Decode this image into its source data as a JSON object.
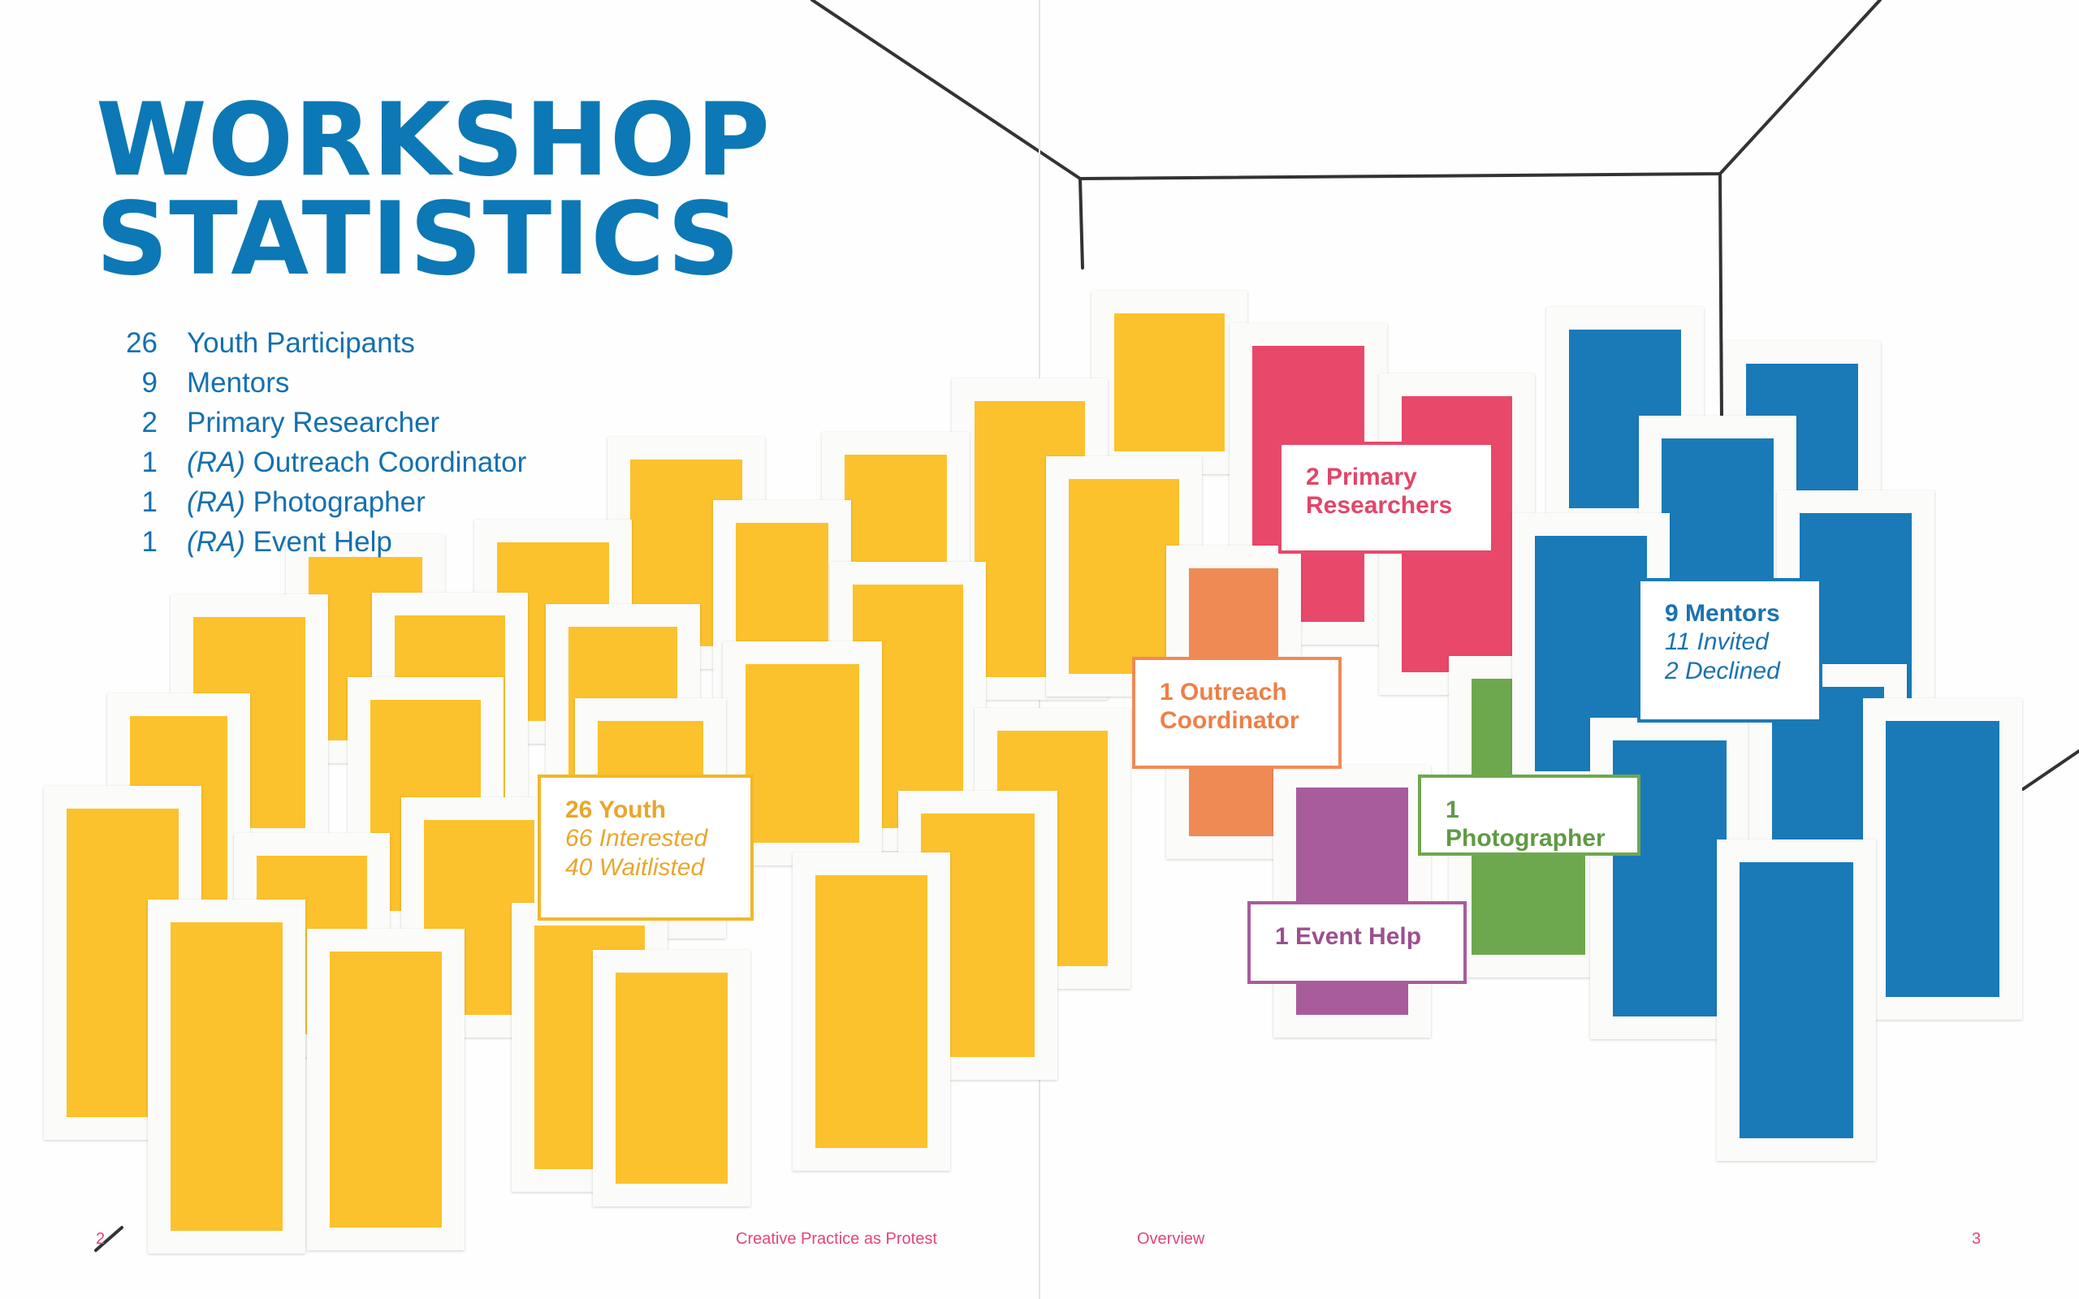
{
  "page": {
    "title_lines": [
      "WORKSHOP",
      "STATISTICS"
    ],
    "colors": {
      "title": "#0c78b5",
      "yellow": "#fcc22d",
      "pink": "#e8486a",
      "orange": "#f08a55",
      "purple": "#a85c9b",
      "green": "#6ea84e",
      "blue": "#1a7ab8",
      "footer": "#e2457a"
    }
  },
  "stats": [
    {
      "num": "26",
      "ra": "",
      "label": "Youth Participants"
    },
    {
      "num": "9",
      "ra": "",
      "label": "Mentors"
    },
    {
      "num": "2",
      "ra": "",
      "label": "Primary Researcher"
    },
    {
      "num": "1",
      "ra": "(RA)",
      "label": " Outreach Coordinator"
    },
    {
      "num": "1",
      "ra": "(RA)",
      "label": " Photographer"
    },
    {
      "num": "1",
      "ra": "(RA)",
      "label": " Event Help"
    }
  ],
  "labels": {
    "youth": {
      "head": "26 Youth",
      "sub1": "66 Interested",
      "sub2": "40 Waitlisted"
    },
    "researchers": {
      "head1": "2 Primary",
      "head2": "Researchers"
    },
    "outreach": {
      "head1": "1 Outreach",
      "head2": "Coordinator"
    },
    "mentors": {
      "head": "9 Mentors",
      "sub1": "11 Invited",
      "sub2": "2 Declined"
    },
    "photographer": {
      "head": "1 Photographer"
    },
    "event_help": {
      "head": "1 Event Help"
    }
  },
  "footer": {
    "left_page": "2",
    "left_title": "Creative Practice as Protest",
    "right_section": "Overview",
    "right_page": "3"
  },
  "collage": {
    "yellow_count": 26,
    "pink_count": 2,
    "orange_count": 1,
    "purple_count": 1,
    "green_count": 1,
    "blue_count": 9
  }
}
